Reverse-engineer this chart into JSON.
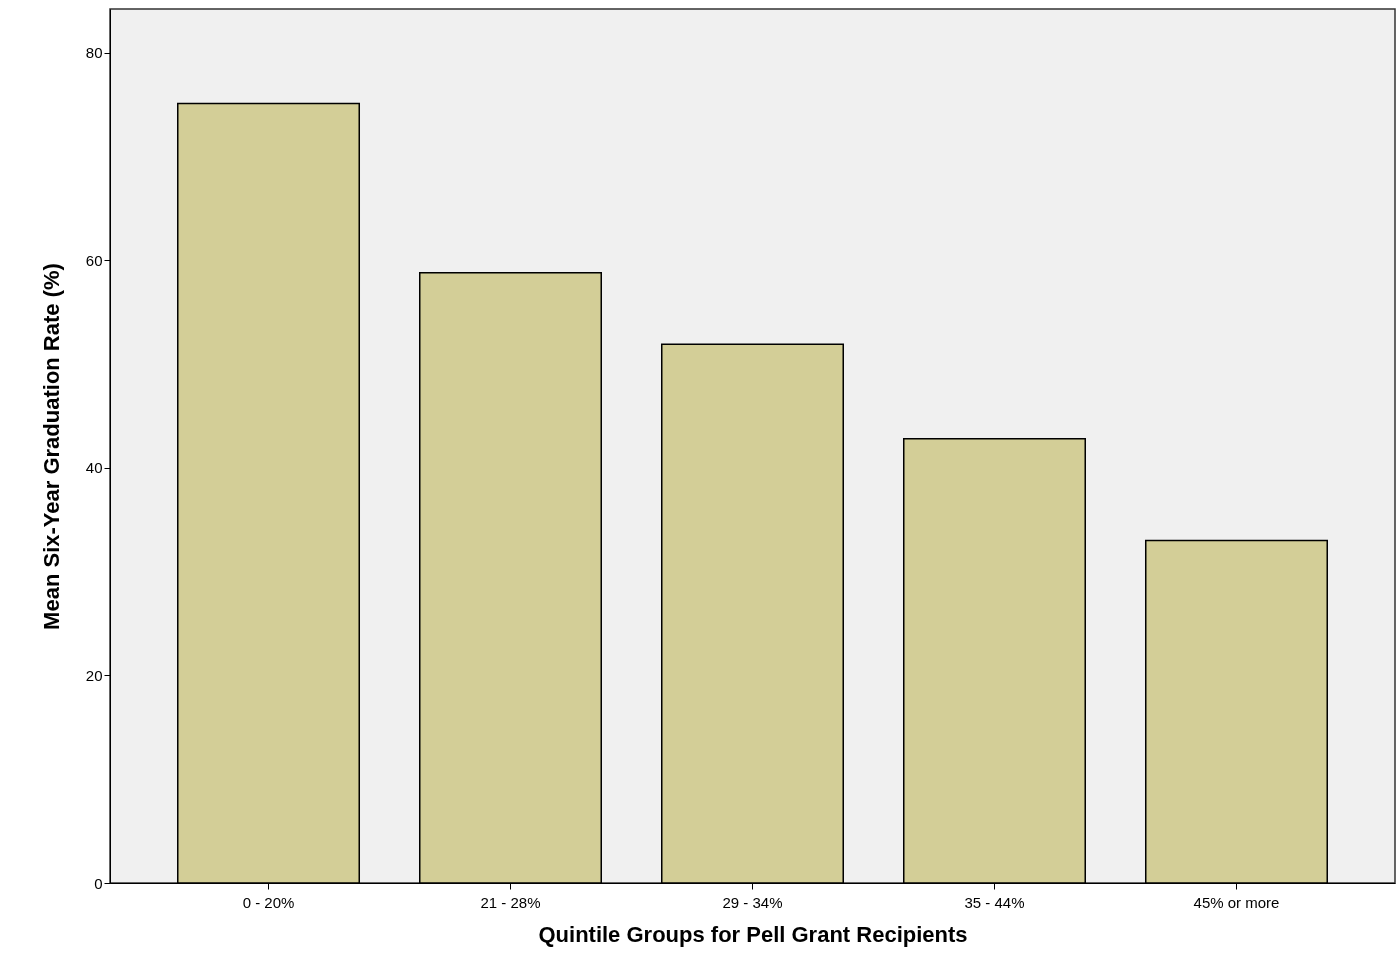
{
  "chart_data": {
    "type": "bar",
    "xlabel": "Quintile Groups for Pell Grant Recipients",
    "ylabel": "Mean Six-Year Graduation Rate (%)",
    "categories": [
      "0 - 20%",
      "21 - 28%",
      "29 - 34%",
      "35 - 44%",
      "45% or more"
    ],
    "values": [
      75.1,
      58.8,
      51.9,
      42.8,
      33.0
    ],
    "color": "#d3ce97",
    "ylim": [
      0,
      84.2
    ],
    "yticks": [
      0,
      20,
      40,
      60,
      80
    ],
    "grid": false
  }
}
